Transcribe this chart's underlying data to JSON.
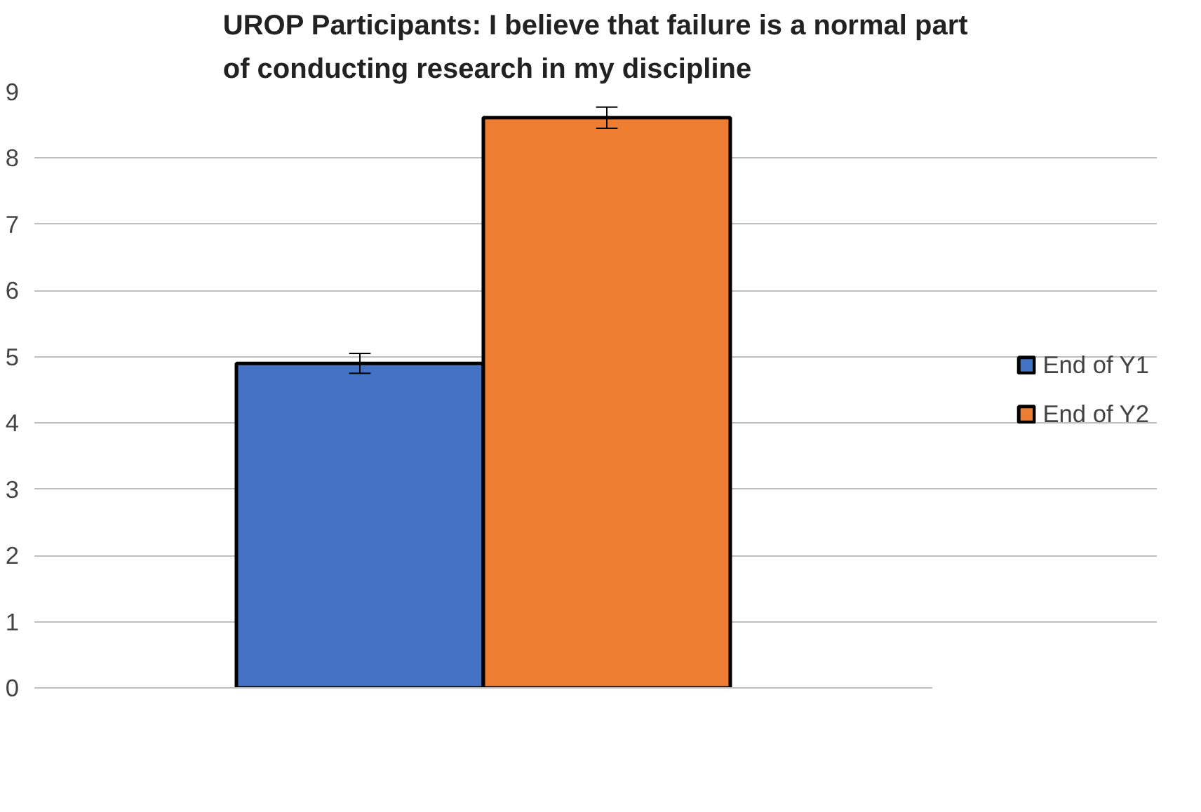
{
  "chart_data": {
    "type": "bar",
    "title": "UROP Participants: I believe that failure is a normal part\nof conducting research in my discipline",
    "categories": [
      null
    ],
    "series": [
      {
        "name": "End of Y1",
        "color": "#4472c4",
        "values": [
          4.9
        ],
        "errors": [
          0.15
        ]
      },
      {
        "name": "End of Y2",
        "color": "#ed7d31",
        "values": [
          8.61
        ],
        "errors": [
          0.16
        ]
      }
    ],
    "ylim": [
      0,
      9
    ],
    "yticks": [
      0,
      1,
      2,
      3,
      4,
      5,
      6,
      7,
      8,
      9
    ],
    "grid": "y",
    "legend": "right"
  }
}
